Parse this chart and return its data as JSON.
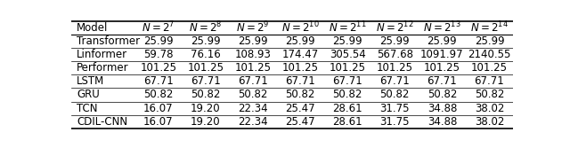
{
  "col_labels": [
    "Model",
    "$N = 2^7$",
    "$N = 2^8$",
    "$N = 2^9$",
    "$N = 2^{10}$",
    "$N = 2^{11}$",
    "$N = 2^{12}$",
    "$N = 2^{13}$",
    "$N = 2^{14}$"
  ],
  "rows": [
    [
      "Transformer",
      "25.99",
      "25.99",
      "25.99",
      "25.99",
      "25.99",
      "25.99",
      "25.99",
      "25.99"
    ],
    [
      "Linformer",
      "59.78",
      "76.16",
      "108.93",
      "174.47",
      "305.54",
      "567.68",
      "1091.97",
      "2140.55"
    ],
    [
      "Performer",
      "101.25",
      "101.25",
      "101.25",
      "101.25",
      "101.25",
      "101.25",
      "101.25",
      "101.25"
    ],
    [
      "LSTM",
      "67.71",
      "67.71",
      "67.71",
      "67.71",
      "67.71",
      "67.71",
      "67.71",
      "67.71"
    ],
    [
      "GRU",
      "50.82",
      "50.82",
      "50.82",
      "50.82",
      "50.82",
      "50.82",
      "50.82",
      "50.82"
    ],
    [
      "TCN",
      "16.07",
      "19.20",
      "22.34",
      "25.47",
      "28.61",
      "31.75",
      "34.88",
      "38.02"
    ],
    [
      "CDIL-CNN",
      "16.07",
      "19.20",
      "22.34",
      "25.47",
      "28.61",
      "31.75",
      "34.88",
      "38.02"
    ]
  ],
  "figsize": [
    6.4,
    1.67
  ],
  "dpi": 100,
  "font_size": 8.5,
  "background_color": "#ffffff",
  "line_color": "#000000",
  "text_color": "#000000"
}
